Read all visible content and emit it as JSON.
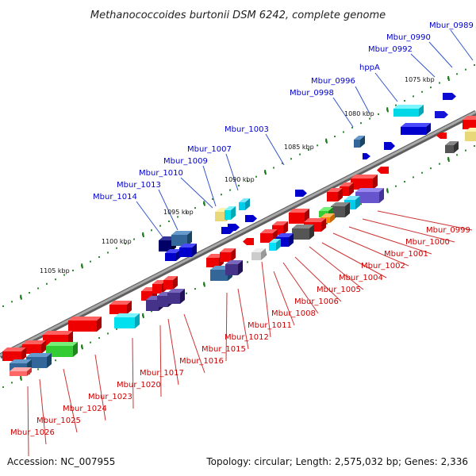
{
  "title": "Methanococcoides burtonii DSM 6242, complete genome",
  "footer": {
    "accession": "Accession: NC_007955",
    "topology": "Topology: circular; Length: 2,575,032 bp; Genes: 2,336"
  },
  "colors": {
    "backbone": "#8c8c8c",
    "tick_dots": "#1a8c1a",
    "top_label": "#0000cc",
    "bottom_label": "#cc0000"
  },
  "ruler_labels": [
    "1075 kbp",
    "1080 kbp",
    "1085 kbp",
    "1090 kbp",
    "1095 kbp",
    "1100 kbp",
    "1105 kbp"
  ],
  "top_genes": [
    "Mbur_0989",
    "Mbur_0990",
    "Mbur_0992",
    "hppA",
    "Mbur_0996",
    "Mbur_0998",
    "Mbur_1003",
    "Mbur_1007",
    "Mbur_1009",
    "Mbur_1010",
    "Mbur_1013",
    "Mbur_1014"
  ],
  "bottom_genes": [
    "Mbur_0999",
    "Mbur_1000",
    "Mbur_1001",
    "Mbur_1002",
    "Mbur_1004",
    "Mbur_1005",
    "Mbur_1006",
    "Mbur_1008",
    "Mbur_1011",
    "Mbur_1012",
    "Mbur_1015",
    "Mbur_1016",
    "Mbur_1017",
    "Mbur_1020",
    "Mbur_1023",
    "Mbur_1024",
    "Mbur_1025",
    "Mbur_1026"
  ]
}
